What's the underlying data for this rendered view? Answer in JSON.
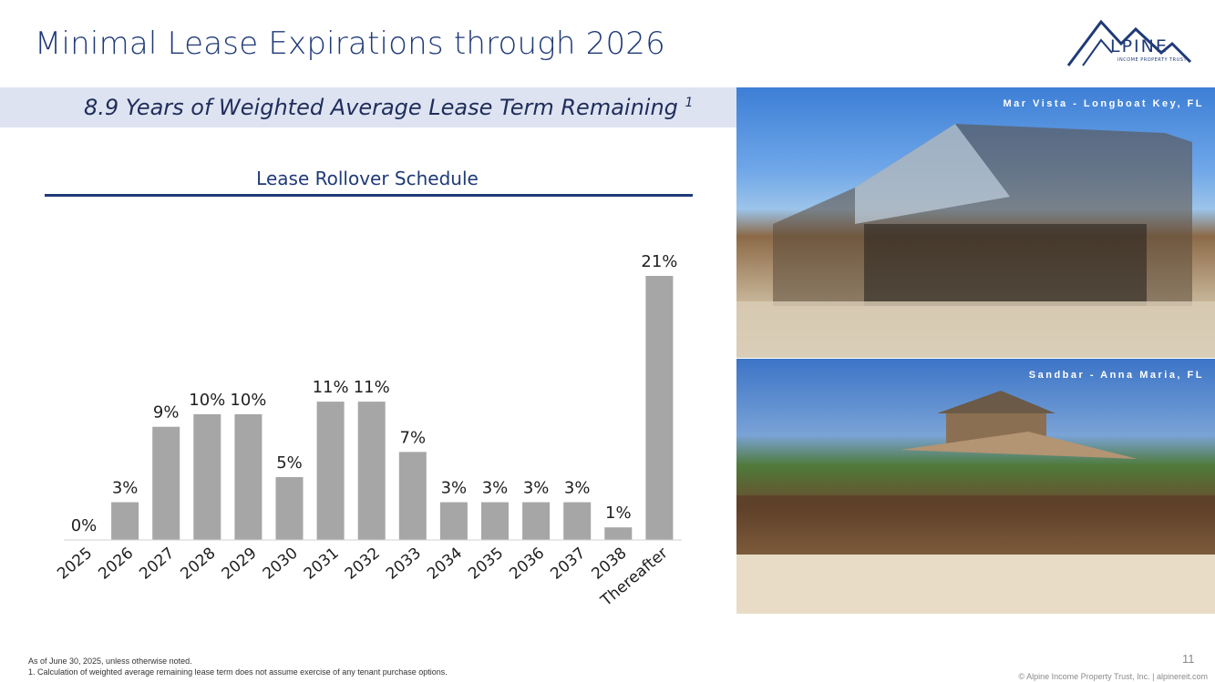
{
  "slide": {
    "title": "Minimal Lease Expirations through 2026",
    "subtitle": "8.9 Years of Weighted Average Lease Term Remaining",
    "subtitle_footnote_ref": "1",
    "page_number": "11"
  },
  "logo": {
    "text": "LPINE",
    "tagline": "INCOME PROPERTY TRUST"
  },
  "photos": [
    {
      "caption": "Mar Vista - Longboat Key, FL"
    },
    {
      "caption": "Sandbar - Anna Maria, FL"
    }
  ],
  "footer": {
    "note": "As of June 30, 2025, unless otherwise noted.",
    "footnote": "1.    Calculation of weighted average remaining lease term does not assume exercise of any tenant purchase options.",
    "copyright": "© Alpine Income Property Trust, Inc.  |  alpinereit.com"
  },
  "colors": {
    "title": "#1f3a78",
    "bar": "#a6a6a6",
    "band": "#dde3f1"
  },
  "chart_data": {
    "type": "bar",
    "title": "Lease Rollover Schedule",
    "categories": [
      "2025",
      "2026",
      "2027",
      "2028",
      "2029",
      "2030",
      "2031",
      "2032",
      "2033",
      "2034",
      "2035",
      "2036",
      "2037",
      "2038",
      "Thereafter"
    ],
    "values": [
      0,
      3,
      9,
      10,
      10,
      5,
      11,
      11,
      7,
      3,
      3,
      3,
      3,
      1,
      21
    ],
    "labels": [
      "0%",
      "3%",
      "9%",
      "10%",
      "10%",
      "5%",
      "11%",
      "11%",
      "7%",
      "3%",
      "3%",
      "3%",
      "3%",
      "1%",
      "21%"
    ],
    "xlabel": "",
    "ylabel": "",
    "ylim": [
      0,
      21
    ],
    "grid": false,
    "legend": "none"
  }
}
